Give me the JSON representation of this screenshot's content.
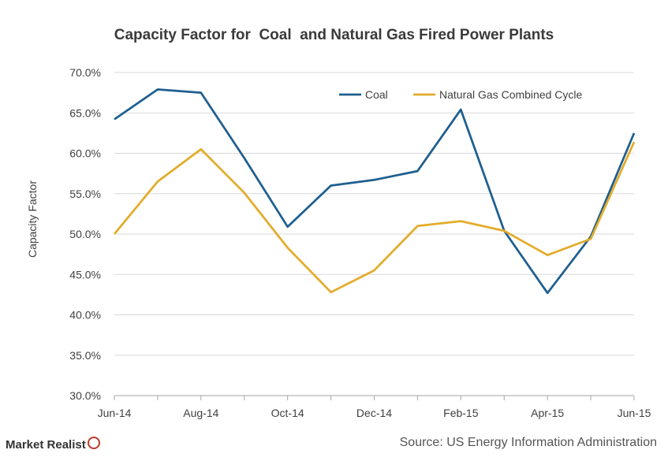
{
  "chart_data": {
    "type": "line",
    "title": "Capacity Factor for  Coal  and Natural Gas Fired Power Plants",
    "ylabel": "Capacity Factor",
    "xlabel": "",
    "x": [
      "Jun-14",
      "Jul-14",
      "Aug-14",
      "Sep-14",
      "Oct-14",
      "Nov-14",
      "Dec-14",
      "Jan-15",
      "Feb-15",
      "Mar-15",
      "Apr-15",
      "May-15",
      "Jun-15"
    ],
    "x_tick_labels": [
      "Jun-14",
      "Aug-14",
      "Oct-14",
      "Dec-14",
      "Feb-15",
      "Apr-15",
      "Jun-15"
    ],
    "ylim": [
      30,
      70
    ],
    "y_ticks": [
      "30.0%",
      "35.0%",
      "40.0%",
      "45.0%",
      "50.0%",
      "55.0%",
      "60.0%",
      "65.0%",
      "70.0%"
    ],
    "grid": "horizontal",
    "legend_position": "top-right",
    "series": [
      {
        "name": "Coal",
        "color": "#1f5f8f",
        "values": [
          64.2,
          67.9,
          67.5,
          59.4,
          50.9,
          56.0,
          56.7,
          57.8,
          65.4,
          50.4,
          42.7,
          49.7,
          62.5
        ]
      },
      {
        "name": "Natural Gas Combined Cycle",
        "color": "#e3ac2b",
        "values": [
          50.0,
          56.5,
          60.5,
          55.1,
          48.3,
          42.8,
          45.5,
          51.0,
          51.6,
          50.4,
          47.4,
          49.4,
          61.4
        ]
      }
    ]
  },
  "footer": {
    "brand": "Market Realist",
    "source": "Source: US Energy Information Administration"
  }
}
